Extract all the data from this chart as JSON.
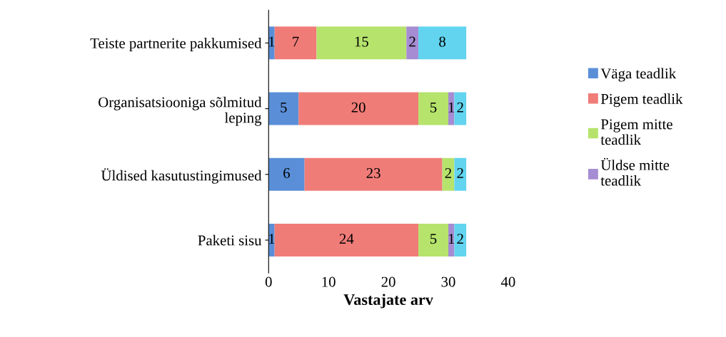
{
  "chart_data": {
    "type": "bar",
    "orientation": "horizontal",
    "stacked": true,
    "xlabel": "Vastajate arv",
    "categories": [
      "Teiste partnerite pakkumised",
      "Organisatsiooniga sõlmitud\nleping",
      "Üldised kasutustingimused",
      "Paketi sisu"
    ],
    "series": [
      {
        "name": "Väga teadlik",
        "color": "#5a8fd8",
        "values": [
          1,
          5,
          6,
          1
        ]
      },
      {
        "name": "Pigem teadlik",
        "color": "#f07c78",
        "values": [
          7,
          20,
          23,
          24
        ]
      },
      {
        "name": "Pigem mitte teadlik",
        "color": "#b6e36c",
        "values": [
          15,
          5,
          2,
          5
        ]
      },
      {
        "name": "Üldse mitte teadlik",
        "color": "#a68cd2",
        "values": [
          2,
          1,
          null,
          1
        ]
      },
      {
        "color": "#62d4f0",
        "values": [
          8,
          2,
          2,
          2
        ]
      }
    ],
    "xlim": [
      0,
      40
    ],
    "xticks": [
      0,
      10,
      20,
      30,
      40
    ],
    "data_labels": true,
    "grid": false,
    "legend": "right"
  }
}
